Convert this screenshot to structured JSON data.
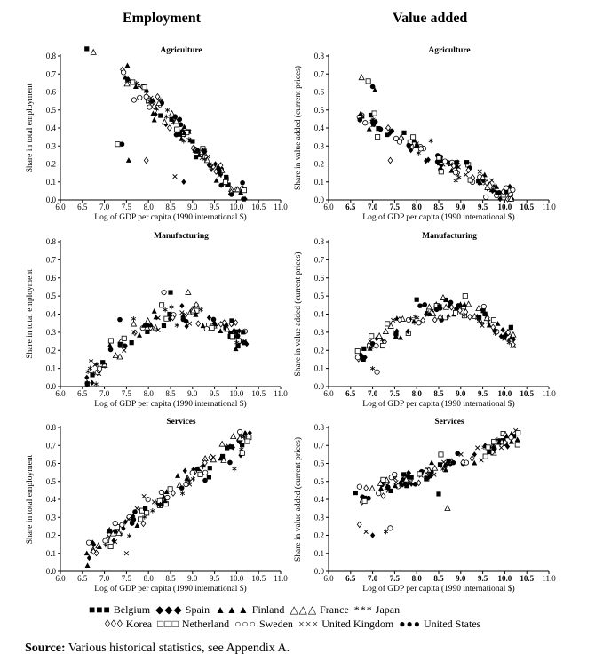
{
  "titles": {
    "left": "Employment",
    "right": "Value added"
  },
  "legend": {
    "row1": [
      {
        "symbol": "■■■",
        "label": "Belgium"
      },
      {
        "symbol": "◆◆◆",
        "label": "Spain"
      },
      {
        "symbol": "▲▲▲",
        "label": "Finland"
      },
      {
        "symbol": "△△△",
        "label": "France"
      },
      {
        "symbol": "***",
        "label": "Japan"
      }
    ],
    "row2": [
      {
        "symbol": "◊◊◊",
        "label": "Korea"
      },
      {
        "symbol": "□□□",
        "label": "Netherland"
      },
      {
        "symbol": "○○○",
        "label": "Sweden"
      },
      {
        "symbol": "×××",
        "label": "United Kingdom"
      },
      {
        "symbol": "●●●",
        "label": "United States"
      }
    ]
  },
  "source": {
    "label": "Source:",
    "text": "Various historical statistics, see Appendix A."
  },
  "chart_data": [
    {
      "type": "scatter",
      "id": "emp-agr",
      "title": "Agriculture",
      "xlabel": "Log of GDP per capita (1990 international $)",
      "ylabel": "Share in total employment",
      "xlim": [
        6.0,
        11.0
      ],
      "ylim": [
        0,
        0.8
      ],
      "x_ticks": [
        "6.0",
        "6.5",
        "7.0",
        "7.5",
        "8.0",
        "8.5",
        "9.0",
        "9.5",
        "10.0",
        "10.5",
        "11.0"
      ],
      "y_ticks": [
        "0.0",
        "0.1",
        "0.2",
        "0.3",
        "0.4",
        "0.5",
        "0.6",
        "0.7",
        "0.8"
      ],
      "curve": {
        "type": "linear",
        "x0": 7.4,
        "y0": 0.7,
        "x1": 10.2,
        "y1": 0.02,
        "spread": 0.07
      },
      "outliers": [
        [
          6.6,
          0.84
        ],
        [
          6.75,
          0.82
        ],
        [
          7.3,
          0.31
        ],
        [
          7.4,
          0.31
        ],
        [
          7.55,
          0.22
        ],
        [
          7.95,
          0.22
        ],
        [
          8.6,
          0.13
        ],
        [
          8.8,
          0.1
        ]
      ]
    },
    {
      "type": "scatter",
      "id": "emp-man",
      "title": "Manufacturing",
      "xlabel": "Log of GDP per capita (1990 international $)",
      "ylabel": "Share in total employment",
      "xlim": [
        6.0,
        11.0
      ],
      "ylim": [
        0,
        0.8
      ],
      "x_ticks": [
        "6.0",
        "6.5",
        "7.0",
        "7.5",
        "8.0",
        "8.5",
        "9.0",
        "9.5",
        "10.0",
        "10.5",
        "11.0"
      ],
      "y_ticks": [
        "0.0",
        "0.1",
        "0.2",
        "0.3",
        "0.4",
        "0.5",
        "0.6",
        "0.7",
        "0.8"
      ],
      "curve": {
        "type": "hump",
        "x0": 6.6,
        "x1": 10.3,
        "peak": 8.9,
        "ymin": 0.05,
        "ymax": 0.4,
        "yend": 0.21,
        "spread": 0.07
      },
      "outliers": [
        [
          6.6,
          0.05
        ],
        [
          6.75,
          0.07
        ],
        [
          8.35,
          0.52
        ],
        [
          8.5,
          0.52
        ],
        [
          8.9,
          0.52
        ],
        [
          8.3,
          0.45
        ],
        [
          7.35,
          0.37
        ]
      ]
    },
    {
      "type": "scatter",
      "id": "emp-ser",
      "title": "Services",
      "xlabel": "Log of GDP per capita (1990 international $)",
      "ylabel": "Share in total employment",
      "xlim": [
        6.0,
        11.0
      ],
      "ylim": [
        0,
        0.8
      ],
      "x_ticks": [
        "6.0",
        "6.5",
        "7.0",
        "7.5",
        "8.0",
        "8.5",
        "9.0",
        "9.5",
        "10.0",
        "10.5",
        "11.0"
      ],
      "y_ticks": [
        "0.0",
        "0.1",
        "0.2",
        "0.3",
        "0.4",
        "0.5",
        "0.6",
        "0.7",
        "0.8"
      ],
      "curve": {
        "type": "linear",
        "x0": 6.6,
        "y0": 0.1,
        "x1": 10.3,
        "y1": 0.76,
        "spread": 0.07
      },
      "outliers": [
        [
          6.6,
          0.1
        ],
        [
          6.75,
          0.11
        ],
        [
          7.5,
          0.1
        ],
        [
          10.3,
          0.77
        ],
        [
          9.95,
          0.57
        ]
      ]
    },
    {
      "type": "scatter",
      "id": "va-agr",
      "title": "Agriculture",
      "xlabel": "Log of GDP per capita (1990 international $)",
      "ylabel": "Share in value added (current prices)",
      "xlim": [
        6.0,
        11.0
      ],
      "ylim": [
        0,
        0.8
      ],
      "x_ticks": [
        "6.0",
        "6.5",
        "7.0",
        "7.5",
        "8.0",
        "8.5",
        "9.0",
        "9.5",
        "10.0",
        "10.5",
        "11.0"
      ],
      "y_ticks": [
        "0.0",
        "0.1",
        "0.2",
        "0.3",
        "0.4",
        "0.5",
        "0.6",
        "0.7",
        "0.8"
      ],
      "curve": {
        "type": "linear",
        "x0": 6.7,
        "y0": 0.46,
        "x1": 10.2,
        "y1": 0.01,
        "spread": 0.06
      },
      "outliers": [
        [
          6.75,
          0.68
        ],
        [
          6.9,
          0.66
        ],
        [
          7.0,
          0.63
        ],
        [
          7.05,
          0.61
        ],
        [
          7.4,
          0.22
        ]
      ]
    },
    {
      "type": "scatter",
      "id": "va-man",
      "title": "Manufacturing",
      "xlabel": "Log of GDP per capita (1990 international $)",
      "ylabel": "Share in value added (current prices)",
      "xlim": [
        6.0,
        11.0
      ],
      "ylim": [
        0,
        0.8
      ],
      "x_ticks": [
        "6.0",
        "6.5",
        "7.0",
        "7.5",
        "8.0",
        "8.5",
        "9.0",
        "9.5",
        "10.0",
        "10.5",
        "11.0"
      ],
      "y_ticks": [
        "0.0",
        "0.1",
        "0.2",
        "0.3",
        "0.4",
        "0.5",
        "0.6",
        "0.7",
        "0.8"
      ],
      "curve": {
        "type": "hump",
        "x0": 6.6,
        "x1": 10.3,
        "peak": 8.8,
        "ymin": 0.14,
        "ymax": 0.42,
        "yend": 0.22,
        "spread": 0.06
      },
      "outliers": [
        [
          7.0,
          0.1
        ],
        [
          7.1,
          0.08
        ],
        [
          8.0,
          0.48
        ],
        [
          8.6,
          0.49
        ],
        [
          9.1,
          0.5
        ],
        [
          9.55,
          0.4
        ]
      ]
    },
    {
      "type": "scatter",
      "id": "va-ser",
      "title": "Services",
      "xlabel": "Log of GDP per capita (1990 international $)",
      "ylabel": "Share in value added (current prices)",
      "xlim": [
        6.0,
        11.0
      ],
      "ylim": [
        0,
        0.8
      ],
      "x_ticks": [
        "6.0",
        "6.5",
        "7.0",
        "7.5",
        "8.0",
        "8.5",
        "9.0",
        "9.5",
        "10.0",
        "10.5",
        "11.0"
      ],
      "y_ticks": [
        "0.0",
        "0.1",
        "0.2",
        "0.3",
        "0.4",
        "0.5",
        "0.6",
        "0.7",
        "0.8"
      ],
      "curve": {
        "type": "linear",
        "x0": 6.6,
        "y0": 0.4,
        "x1": 10.3,
        "y1": 0.75,
        "spread": 0.05
      },
      "outliers": [
        [
          6.7,
          0.26
        ],
        [
          6.85,
          0.22
        ],
        [
          7.0,
          0.2
        ],
        [
          7.3,
          0.22
        ],
        [
          7.4,
          0.24
        ],
        [
          8.5,
          0.43
        ],
        [
          8.7,
          0.35
        ],
        [
          10.3,
          0.77
        ]
      ]
    }
  ]
}
